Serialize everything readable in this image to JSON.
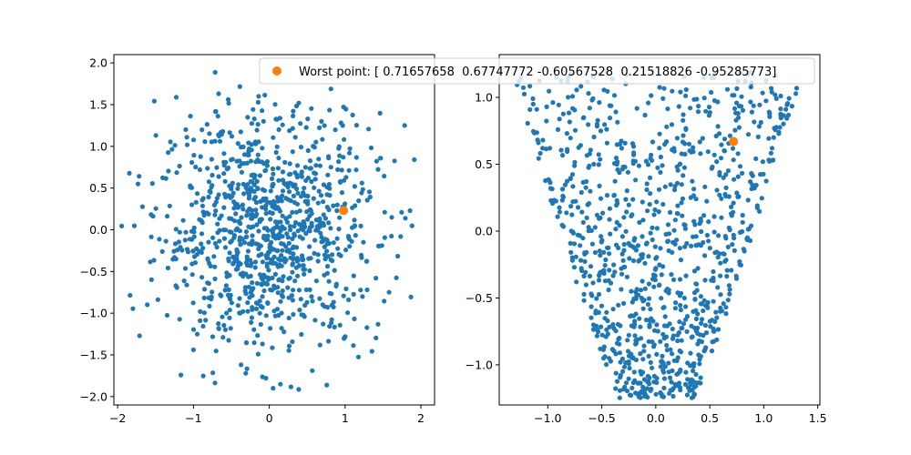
{
  "figure": {
    "legend": {
      "label": "Worst point: [ 0.71657658  0.67747772 -0.60567528  0.21518826 -0.95285773]",
      "marker_color": "#ff7f0e"
    },
    "colors": {
      "points": "#1f77b4",
      "worst": "#ff7f0e"
    }
  },
  "chart_data": [
    {
      "type": "scatter",
      "title": "",
      "xlabel": "",
      "ylabel": "",
      "xlim": [
        -2.05,
        2.18
      ],
      "ylim": [
        -2.1,
        2.1
      ],
      "xticks": [
        -2,
        -1,
        0,
        1,
        2
      ],
      "yticks": [
        -2.0,
        -1.5,
        -1.0,
        -0.5,
        0.0,
        0.5,
        1.0,
        1.5,
        2.0
      ],
      "grid": false,
      "series": [
        {
          "color": "#1f77b4",
          "distribution": "approx. 1000 samples, roughly isotropic Gaussian cloud centered at (0, 0), spanning about -1.9..2.0 on both axes"
        },
        {
          "name": "Worst point: [ 0.71657658  0.67747772 -0.60567528  0.21518826 -0.95285773]",
          "color": "#ff7f0e",
          "points": [
            [
              0.98,
              0.23
            ]
          ]
        }
      ]
    },
    {
      "type": "scatter",
      "title": "",
      "xlabel": "",
      "ylabel": "",
      "xlim": [
        -1.45,
        1.52
      ],
      "ylim": [
        -1.3,
        1.32
      ],
      "xticks": [
        -1.0,
        -0.5,
        0.0,
        0.5,
        1.0,
        1.5
      ],
      "yticks": [
        -1.0,
        -0.5,
        0.0,
        0.5,
        1.0
      ],
      "grid": false,
      "series": [
        {
          "color": "#1f77b4",
          "distribution": "approx. 1000 samples forming a U/heart-shaped band: wide near y=1.0 (x -1.35..1.4), narrowing to x about -0.5..0.5 near y=-1.0, minimum near y=-1.25"
        },
        {
          "name": "Worst point: [ 0.71657658  0.67747772 -0.60567528  0.21518826 -0.95285773]",
          "color": "#ff7f0e",
          "points": [
            [
              0.72,
              0.67
            ]
          ]
        }
      ]
    }
  ]
}
